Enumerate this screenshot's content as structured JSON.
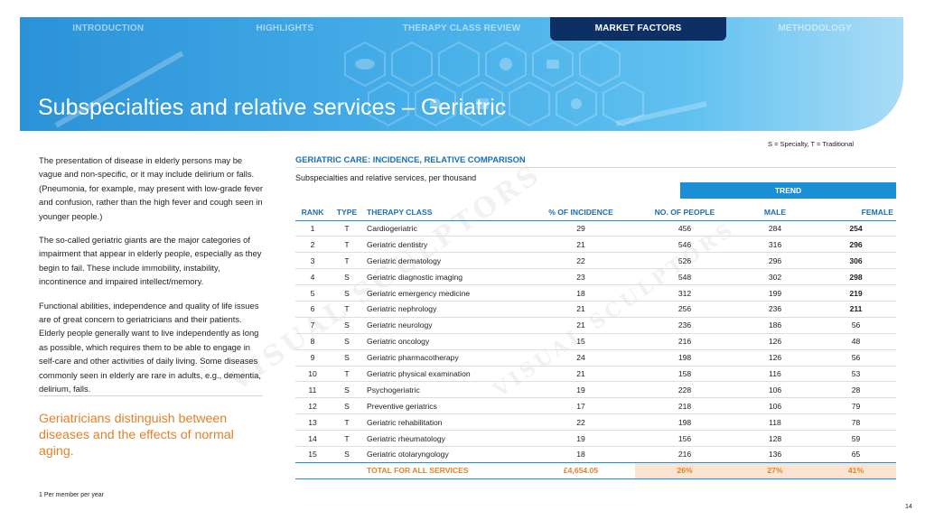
{
  "nav": {
    "tabs": [
      {
        "label": "INTRODUCTION",
        "active": false
      },
      {
        "label": "HIGHLIGHTS",
        "active": false
      },
      {
        "label": "THERAPY CLASS REVIEW",
        "active": false
      },
      {
        "label": "MARKET FACTORS",
        "active": true
      },
      {
        "label": "METHODOLOGY",
        "active": false
      }
    ]
  },
  "page": {
    "title": "Subspecialties and relative services – Geriatric",
    "page_number": "14",
    "footnote": "1 Per member per year"
  },
  "left": {
    "paragraphs": [
      "The presentation of disease in elderly persons may be vague and non-specific, or it may include delirium or falls. (Pneumonia, for example, may present with low-grade fever and confusion, rather than the high fever and cough seen in younger people.)",
      "The so-called geriatric giants are the major categories of impairment that appear in elderly people, especially as they begin to fail. These include immobility, instability, incontinence and impaired intellect/memory.",
      "Functional abilities, independence and quality of life issues are of great concern to geriatricians and their patients. Elderly people generally want to live independently as long as possible, which requires them to be able to engage in self-care and other activities of daily living. Some diseases commonly seen in elderly are rare in adults, e.g., dementia, delirium, falls."
    ],
    "callout": "Geriatricians distinguish between diseases and the effects of normal aging."
  },
  "table": {
    "legend": "S = Specialty, T = Traditional",
    "title": "GERIATRIC CARE: INCIDENCE, RELATIVE COMPARISON",
    "subtitle": "Subspecialties and relative services, per thousand",
    "trend_label": "TREND",
    "headers": {
      "rank": "RANK",
      "type": "TYPE",
      "class": "THERAPY CLASS",
      "incidence": "% OF INCIDENCE",
      "people": "NO. OF PEOPLE",
      "male": "MALE",
      "female": "FEMALE"
    },
    "rows": [
      {
        "rank": "1",
        "type": "T",
        "class": "Cardiogeriatric",
        "incidence": "29",
        "people": "456",
        "male": "284",
        "female": "254",
        "highlight": true
      },
      {
        "rank": "2",
        "type": "T",
        "class": "Geriatric dentistry",
        "incidence": "21",
        "people": "546",
        "male": "316",
        "female": "296",
        "highlight": true
      },
      {
        "rank": "3",
        "type": "T",
        "class": "Geriatric dermatology",
        "incidence": "22",
        "people": "526",
        "male": "296",
        "female": "306",
        "highlight": true
      },
      {
        "rank": "4",
        "type": "S",
        "class": "Geriatric diagnostic imaging",
        "incidence": "23",
        "people": "548",
        "male": "302",
        "female": "298",
        "highlight": true
      },
      {
        "rank": "5",
        "type": "S",
        "class": "Geriatric emergency medicine",
        "incidence": "18",
        "people": "312",
        "male": "199",
        "female": "219",
        "highlight": true
      },
      {
        "rank": "6",
        "type": "T",
        "class": "Geriatric nephrology",
        "incidence": "21",
        "people": "256",
        "male": "236",
        "female": "211",
        "highlight": true
      },
      {
        "rank": "7",
        "type": "S",
        "class": "Geriatric neurology",
        "incidence": "21",
        "people": "236",
        "male": "186",
        "female": "56",
        "highlight": false
      },
      {
        "rank": "8",
        "type": "S",
        "class": "Geriatric oncology",
        "incidence": "15",
        "people": "216",
        "male": "126",
        "female": "48",
        "highlight": false
      },
      {
        "rank": "9",
        "type": "S",
        "class": "Geriatric pharmacotherapy",
        "incidence": "24",
        "people": "198",
        "male": "126",
        "female": "56",
        "highlight": false
      },
      {
        "rank": "10",
        "type": "T",
        "class": "Geriatric physical examination",
        "incidence": "21",
        "people": "158",
        "male": "116",
        "female": "53",
        "highlight": false
      },
      {
        "rank": "11",
        "type": "S",
        "class": "Psychogeriatric",
        "incidence": "19",
        "people": "228",
        "male": "106",
        "female": "28",
        "highlight": false
      },
      {
        "rank": "12",
        "type": "S",
        "class": "Preventive geriatrics",
        "incidence": "17",
        "people": "218",
        "male": "106",
        "female": "79",
        "highlight": false
      },
      {
        "rank": "13",
        "type": "T",
        "class": "Geriatric rehabilitation",
        "incidence": "22",
        "people": "198",
        "male": "118",
        "female": "78",
        "highlight": false
      },
      {
        "rank": "14",
        "type": "T",
        "class": "Geriatric rheumatology",
        "incidence": "19",
        "people": "156",
        "male": "128",
        "female": "59",
        "highlight": false
      },
      {
        "rank": "15",
        "type": "S",
        "class": "Geriatric otolaryngology",
        "incidence": "18",
        "people": "216",
        "male": "136",
        "female": "65",
        "highlight": false
      }
    ],
    "total": {
      "label": "TOTAL FOR ALL SERVICES",
      "incidence": "£4,654.05",
      "people": "26%",
      "male": "27%",
      "female": "41%"
    }
  },
  "colors": {
    "accent_blue": "#1a8fd6",
    "title_blue": "#1b6fb0",
    "nav_active": "#0d2f63",
    "callout_orange": "#e0822a",
    "total_fill": "#fbe5d2"
  }
}
